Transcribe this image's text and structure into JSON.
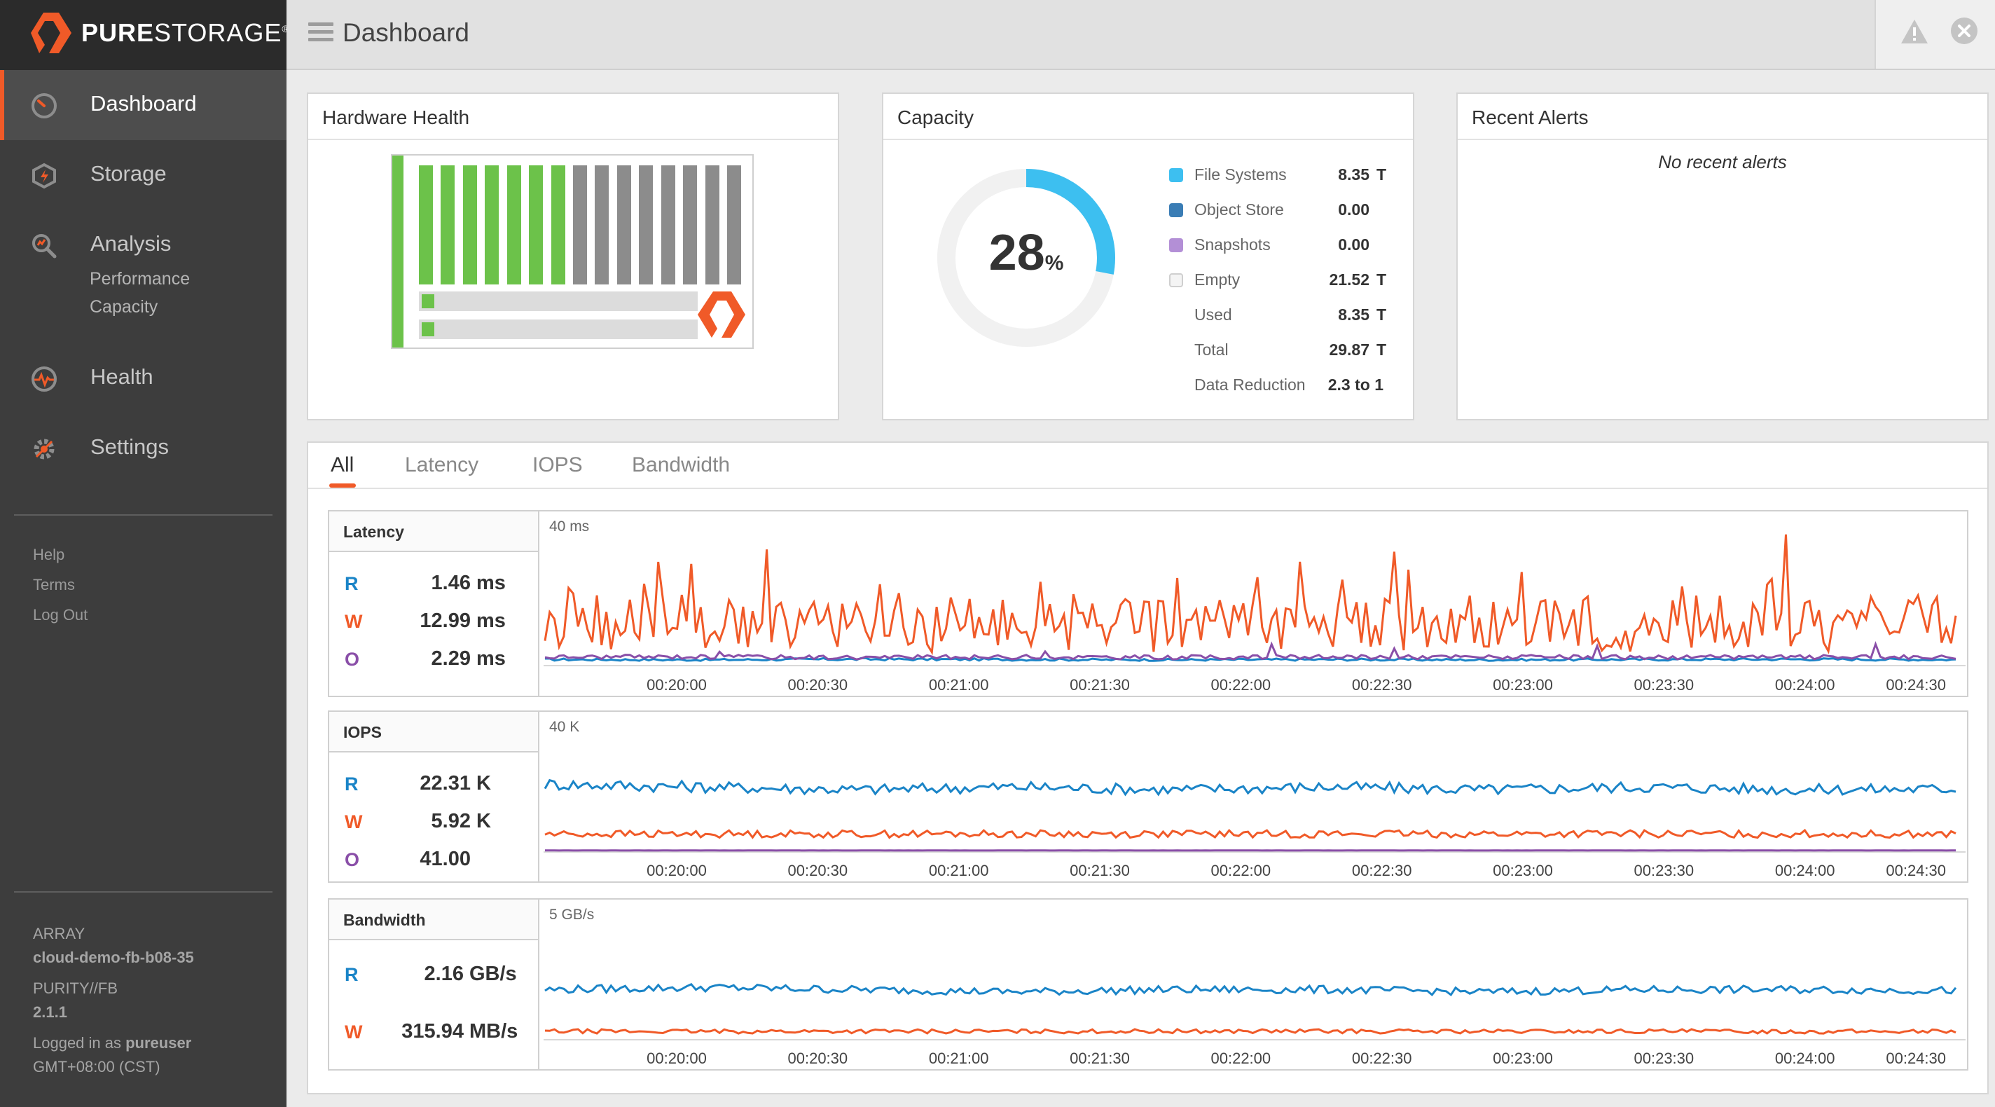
{
  "app": {
    "brand_bold": "PURE",
    "brand_light": "STORAGE",
    "brand_mark": "®"
  },
  "header": {
    "title": "Dashboard"
  },
  "sidebar": {
    "nav": [
      {
        "label": "Dashboard",
        "icon": "dashboard-gauge-icon"
      },
      {
        "label": "Storage",
        "icon": "storage-icon"
      },
      {
        "label": "Analysis",
        "icon": "analysis-magnifier-icon"
      },
      {
        "label": "Health",
        "icon": "health-pulse-icon"
      },
      {
        "label": "Settings",
        "icon": "settings-gear-icon"
      }
    ],
    "analysis_sub": [
      "Performance",
      "Capacity"
    ],
    "links": [
      "Help",
      "Terms",
      "Log Out"
    ],
    "array_label": "ARRAY",
    "array_name": "cloud-demo-fb-b08-35",
    "purity_label": "PURITY//FB",
    "purity_version": "2.1.1",
    "logged_prefix": "Logged in as ",
    "logged_user": "pureuser",
    "timezone": "GMT+08:00 (CST)"
  },
  "hardware": {
    "title": "Hardware Health",
    "blades_total": 15,
    "blades_healthy": 7
  },
  "capacity": {
    "title": "Capacity",
    "percent": "28",
    "percent_sign": "%",
    "used_fraction": 0.28,
    "legend": [
      {
        "label": "File Systems",
        "value": "8.35",
        "unit": "T",
        "color": "#3dbff0"
      },
      {
        "label": "Object Store",
        "value": "0.00",
        "unit": "",
        "color": "#3a7db5"
      },
      {
        "label": "Snapshots",
        "value": "0.00",
        "unit": "",
        "color": "#b38fd6"
      },
      {
        "label": "Empty",
        "value": "21.52",
        "unit": "T",
        "color": "#f4f4f4"
      }
    ],
    "totals": [
      {
        "label": "Used",
        "value": "8.35",
        "unit": "T"
      },
      {
        "label": "Total",
        "value": "29.87",
        "unit": "T"
      },
      {
        "label": "Data Reduction",
        "value": "2.3 to 1",
        "unit": ""
      }
    ]
  },
  "alerts": {
    "title": "Recent Alerts",
    "empty_text": "No recent alerts"
  },
  "tabs": [
    "All",
    "Latency",
    "IOPS",
    "Bandwidth"
  ],
  "colors": {
    "read": "#1a84c7",
    "write": "#f05a28",
    "other": "#8a4fa8",
    "accent": "#f05a28"
  },
  "performance": {
    "latency": {
      "title": "Latency",
      "ymax": "40 ms",
      "rows": [
        {
          "k": "R",
          "v": "1.46",
          "u": "ms"
        },
        {
          "k": "W",
          "v": "12.99",
          "u": "ms"
        },
        {
          "k": "O",
          "v": "2.29",
          "u": "ms"
        }
      ]
    },
    "iops": {
      "title": "IOPS",
      "ymax": "40 K",
      "rows": [
        {
          "k": "R",
          "v": "22.31",
          "u": "K"
        },
        {
          "k": "W",
          "v": "5.92",
          "u": "K"
        },
        {
          "k": "O",
          "v": "41.00",
          "u": ""
        }
      ]
    },
    "bandwidth": {
      "title": "Bandwidth",
      "ymax": "5 GB/s",
      "rows": [
        {
          "k": "R",
          "v": "2.16",
          "u": "GB/s"
        },
        {
          "k": "W",
          "v": "315.94",
          "u": "MB/s"
        }
      ]
    },
    "ticks": [
      "00:20:00",
      "00:20:30",
      "00:21:00",
      "00:21:30",
      "00:22:00",
      "00:22:30",
      "00:23:00",
      "00:23:30",
      "00:24:00",
      "00:24:30"
    ]
  },
  "chart_data": [
    {
      "type": "line",
      "title": "Latency",
      "ylim": [
        0,
        40
      ],
      "ylabel": "ms",
      "x": [
        "00:20:00",
        "00:20:30",
        "00:21:00",
        "00:21:30",
        "00:22:00",
        "00:22:30",
        "00:23:00",
        "00:23:30",
        "00:24:00",
        "00:24:30"
      ],
      "series": [
        {
          "name": "R",
          "values": [
            1.5,
            1.4,
            1.6,
            1.5,
            1.4,
            1.5,
            1.4,
            1.5,
            1.6,
            1.46
          ]
        },
        {
          "name": "W",
          "values": [
            14,
            13,
            12,
            13,
            12,
            13,
            12,
            13,
            13,
            12.99
          ]
        },
        {
          "name": "O",
          "values": [
            2.3,
            2.4,
            2.2,
            2.3,
            2.2,
            2.3,
            2.3,
            2.2,
            2.3,
            2.29
          ]
        }
      ]
    },
    {
      "type": "line",
      "title": "IOPS",
      "ylim": [
        0,
        40
      ],
      "ylabel": "K",
      "x": [
        "00:20:00",
        "00:20:30",
        "00:21:00",
        "00:21:30",
        "00:22:00",
        "00:22:30",
        "00:23:00",
        "00:23:30",
        "00:24:00",
        "00:24:30"
      ],
      "series": [
        {
          "name": "R",
          "values": [
            24,
            23,
            22,
            23,
            22,
            23,
            22,
            23,
            22,
            22.31
          ]
        },
        {
          "name": "W",
          "values": [
            6,
            6,
            6,
            6,
            6,
            6,
            6,
            6,
            6,
            5.92
          ]
        },
        {
          "name": "O",
          "values": [
            0.04,
            0.04,
            0.04,
            0.04,
            0.04,
            0.04,
            0.04,
            0.04,
            0.04,
            0.041
          ]
        }
      ]
    },
    {
      "type": "line",
      "title": "Bandwidth",
      "ylim": [
        0,
        5
      ],
      "ylabel": "GB/s",
      "x": [
        "00:20:00",
        "00:20:30",
        "00:21:00",
        "00:21:30",
        "00:22:00",
        "00:22:30",
        "00:23:00",
        "00:23:30",
        "00:24:00",
        "00:24:30"
      ],
      "series": [
        {
          "name": "R",
          "values": [
            2.2,
            2.3,
            2.2,
            2.1,
            2.2,
            2.2,
            2.1,
            2.2,
            2.2,
            2.16
          ]
        },
        {
          "name": "W",
          "values": [
            0.32,
            0.31,
            0.32,
            0.31,
            0.32,
            0.32,
            0.31,
            0.32,
            0.31,
            0.316
          ]
        }
      ]
    }
  ]
}
